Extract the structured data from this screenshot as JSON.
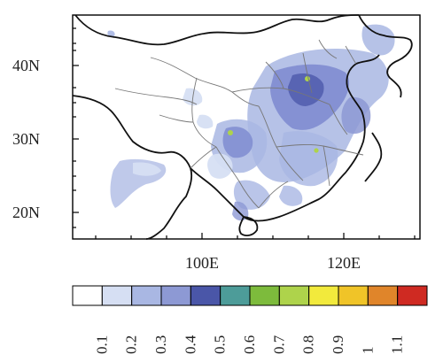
{
  "map": {
    "lat_labels": [
      "40N",
      "30N",
      "20N"
    ],
    "lon_labels": [
      "100E",
      "120E"
    ],
    "extent": {
      "lon_min": 82,
      "lon_max": 131,
      "lat_min": 17,
      "lat_max": 46
    }
  },
  "colorbar": {
    "levels": [
      "0.1",
      "0.2",
      "0.3",
      "0.4",
      "0.5",
      "0.6",
      "0.7",
      "0.8",
      "0.9",
      "1",
      "1.1"
    ],
    "colors": [
      "#ffffff",
      "#d6dff3",
      "#a9b7e3",
      "#8d99d4",
      "#4a56a8",
      "#4d9c99",
      "#7dbb3c",
      "#aed34b",
      "#f2ea3c",
      "#f0c428",
      "#e0852a",
      "#cf2a22"
    ]
  }
}
